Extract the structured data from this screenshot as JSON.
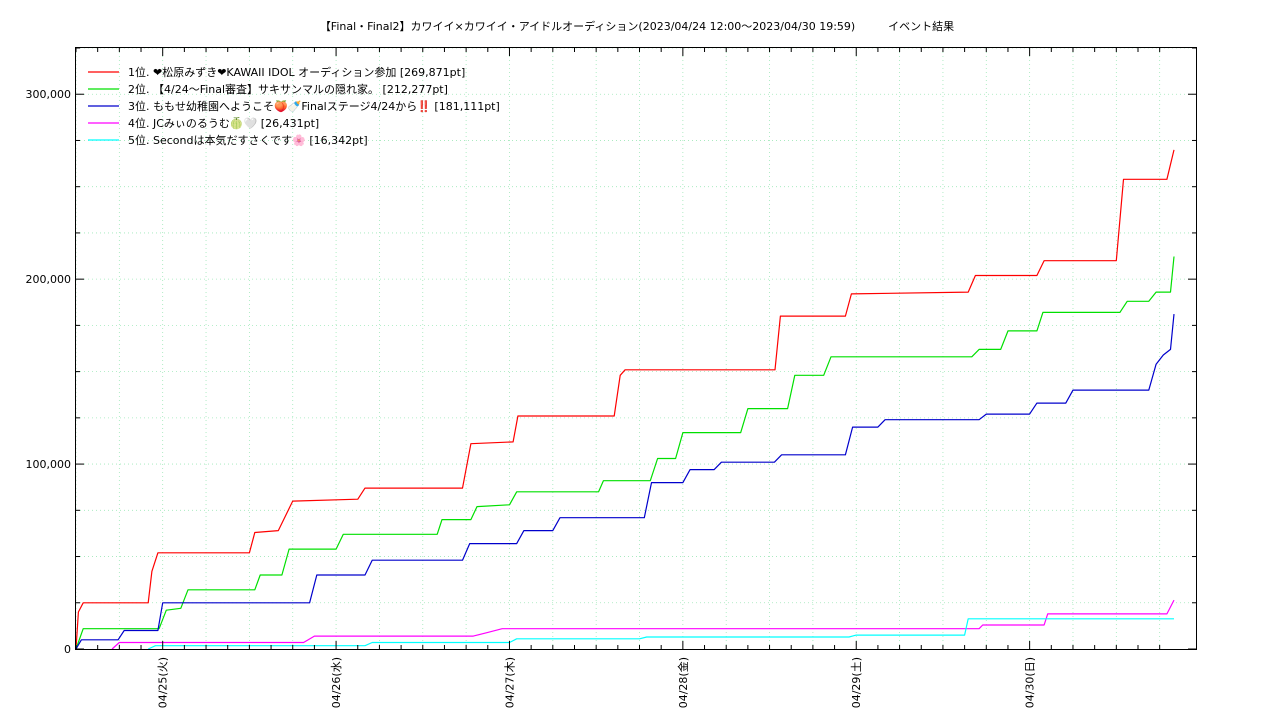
{
  "chart_data": {
    "type": "line",
    "title": "【Final・Final2】カワイイ×カワイイ・アイドルオーディション(2023/04/24 12:00〜2023/04/30 19:59)　　　イベント結果",
    "xlabel": "",
    "ylabel": "",
    "x_range": [
      "2023-04-24 12:00",
      "2023-04-30 19:59"
    ],
    "ylim": [
      0,
      325000
    ],
    "y_ticks": [
      0,
      100000,
      200000,
      300000
    ],
    "y_tick_labels": [
      "0",
      "100,000",
      "200,000",
      "300,000"
    ],
    "x_ticks": [
      "2023-04-25",
      "2023-04-26",
      "2023-04-27",
      "2023-04-28",
      "2023-04-29",
      "2023-04-30"
    ],
    "x_tick_labels": [
      "04/25(火)",
      "04/26(水)",
      "04/27(木)",
      "04/28(金)",
      "04/29(土)",
      "04/30(日)"
    ],
    "grid": true,
    "legend_position": "top-left",
    "series": [
      {
        "name": "1位. ❤松原みずき❤KAWAII IDOL オーディション参加 [269,871pt]",
        "color": "#ff0000",
        "points": [
          [
            "2023-04-24 12:00",
            0
          ],
          [
            "2023-04-24 12:20",
            20000
          ],
          [
            "2023-04-24 13:00",
            25000
          ],
          [
            "2023-04-24 22:00",
            25000
          ],
          [
            "2023-04-24 22:30",
            42000
          ],
          [
            "2023-04-24 23:20",
            52000
          ],
          [
            "2023-04-25 12:00",
            52000
          ],
          [
            "2023-04-25 12:45",
            63000
          ],
          [
            "2023-04-25 16:00",
            64000
          ],
          [
            "2023-04-25 18:00",
            80000
          ],
          [
            "2023-04-26 03:00",
            81000
          ],
          [
            "2023-04-26 04:00",
            87000
          ],
          [
            "2023-04-26 17:30",
            87000
          ],
          [
            "2023-04-26 18:40",
            111000
          ],
          [
            "2023-04-27 00:30",
            112000
          ],
          [
            "2023-04-27 01:10",
            126000
          ],
          [
            "2023-04-27 14:30",
            126000
          ],
          [
            "2023-04-27 15:20",
            148000
          ],
          [
            "2023-04-27 16:00",
            151000
          ],
          [
            "2023-04-28 12:45",
            151000
          ],
          [
            "2023-04-28 13:30",
            180000
          ],
          [
            "2023-04-28 22:30",
            180000
          ],
          [
            "2023-04-28 23:20",
            192000
          ],
          [
            "2023-04-29 15:30",
            193000
          ],
          [
            "2023-04-29 16:30",
            202000
          ],
          [
            "2023-04-30 01:00",
            202000
          ],
          [
            "2023-04-30 02:00",
            210000
          ],
          [
            "2023-04-30 12:00",
            210000
          ],
          [
            "2023-04-30 13:00",
            254000
          ],
          [
            "2023-04-30 19:00",
            254000
          ],
          [
            "2023-04-30 19:59",
            269871
          ]
        ]
      },
      {
        "name": "2位. 【4/24〜Final審査】サキサンマルの隠れ家。 [212,277pt]",
        "color": "#00e000",
        "points": [
          [
            "2023-04-24 12:00",
            0
          ],
          [
            "2023-04-24 13:00",
            11000
          ],
          [
            "2023-04-24 23:30",
            11000
          ],
          [
            "2023-04-25 00:30",
            21000
          ],
          [
            "2023-04-25 02:30",
            22000
          ],
          [
            "2023-04-25 03:30",
            32000
          ],
          [
            "2023-04-25 12:45",
            32000
          ],
          [
            "2023-04-25 13:30",
            40000
          ],
          [
            "2023-04-25 16:30",
            40000
          ],
          [
            "2023-04-25 17:30",
            54000
          ],
          [
            "2023-04-26 00:00",
            54000
          ],
          [
            "2023-04-26 01:00",
            62000
          ],
          [
            "2023-04-26 14:00",
            62000
          ],
          [
            "2023-04-26 14:40",
            70000
          ],
          [
            "2023-04-26 18:40",
            70000
          ],
          [
            "2023-04-26 19:30",
            77000
          ],
          [
            "2023-04-27 00:00",
            78000
          ],
          [
            "2023-04-27 01:00",
            85000
          ],
          [
            "2023-04-27 12:20",
            85000
          ],
          [
            "2023-04-27 13:00",
            91000
          ],
          [
            "2023-04-27 19:30",
            91000
          ],
          [
            "2023-04-27 20:30",
            103000
          ],
          [
            "2023-04-27 23:00",
            103000
          ],
          [
            "2023-04-28 00:00",
            117000
          ],
          [
            "2023-04-28 08:00",
            117000
          ],
          [
            "2023-04-28 09:00",
            130000
          ],
          [
            "2023-04-28 14:30",
            130000
          ],
          [
            "2023-04-28 15:30",
            148000
          ],
          [
            "2023-04-28 19:30",
            148000
          ],
          [
            "2023-04-28 20:30",
            158000
          ],
          [
            "2023-04-29 16:00",
            158000
          ],
          [
            "2023-04-29 17:00",
            162000
          ],
          [
            "2023-04-29 20:00",
            162000
          ],
          [
            "2023-04-29 21:00",
            172000
          ],
          [
            "2023-04-30 01:00",
            172000
          ],
          [
            "2023-04-30 01:50",
            182000
          ],
          [
            "2023-04-30 12:30",
            182000
          ],
          [
            "2023-04-30 13:30",
            188000
          ],
          [
            "2023-04-30 16:30",
            188000
          ],
          [
            "2023-04-30 17:30",
            193000
          ],
          [
            "2023-04-30 19:30",
            193000
          ],
          [
            "2023-04-30 19:59",
            212277
          ]
        ]
      },
      {
        "name": "3位. ももせ幼稚園へようこそ🍑🍼Finalステージ4/24から‼️ [181,111pt]",
        "color": "#0000cc",
        "points": [
          [
            "2023-04-24 12:00",
            0
          ],
          [
            "2023-04-24 12:45",
            5000
          ],
          [
            "2023-04-24 17:50",
            5000
          ],
          [
            "2023-04-24 18:40",
            10000
          ],
          [
            "2023-04-24 23:20",
            10000
          ],
          [
            "2023-04-25 00:00",
            25000
          ],
          [
            "2023-04-25 20:20",
            25000
          ],
          [
            "2023-04-25 21:20",
            40000
          ],
          [
            "2023-04-26 04:00",
            40000
          ],
          [
            "2023-04-26 05:00",
            48000
          ],
          [
            "2023-04-26 17:30",
            48000
          ],
          [
            "2023-04-26 18:30",
            57000
          ],
          [
            "2023-04-27 01:00",
            57000
          ],
          [
            "2023-04-27 02:00",
            64000
          ],
          [
            "2023-04-27 06:00",
            64000
          ],
          [
            "2023-04-27 07:00",
            71000
          ],
          [
            "2023-04-27 18:40",
            71000
          ],
          [
            "2023-04-27 19:40",
            90000
          ],
          [
            "2023-04-28 00:00",
            90000
          ],
          [
            "2023-04-28 01:00",
            97000
          ],
          [
            "2023-04-28 04:20",
            97000
          ],
          [
            "2023-04-28 05:20",
            101000
          ],
          [
            "2023-04-28 12:40",
            101000
          ],
          [
            "2023-04-28 13:40",
            105000
          ],
          [
            "2023-04-28 22:30",
            105000
          ],
          [
            "2023-04-28 23:30",
            120000
          ],
          [
            "2023-04-29 03:00",
            120000
          ],
          [
            "2023-04-29 04:00",
            124000
          ],
          [
            "2023-04-29 17:00",
            124000
          ],
          [
            "2023-04-29 18:00",
            127000
          ],
          [
            "2023-04-30 00:00",
            127000
          ],
          [
            "2023-04-30 01:00",
            133000
          ],
          [
            "2023-04-30 05:00",
            133000
          ],
          [
            "2023-04-30 06:00",
            140000
          ],
          [
            "2023-04-30 16:30",
            140000
          ],
          [
            "2023-04-30 17:30",
            154000
          ],
          [
            "2023-04-30 18:30",
            159000
          ],
          [
            "2023-04-30 19:30",
            162000
          ],
          [
            "2023-04-30 19:59",
            181111
          ]
        ]
      },
      {
        "name": "4位. JCみぃのるうむ🍈🤍 [26,431pt]",
        "color": "#ff00ff",
        "points": [
          [
            "2023-04-24 17:00",
            0
          ],
          [
            "2023-04-24 18:00",
            3500
          ],
          [
            "2023-04-25 19:30",
            3500
          ],
          [
            "2023-04-25 21:00",
            7000
          ],
          [
            "2023-04-26 19:00",
            7000
          ],
          [
            "2023-04-26 21:00",
            9000
          ],
          [
            "2023-04-26 23:00",
            11000
          ],
          [
            "2023-04-29 17:00",
            11000
          ],
          [
            "2023-04-29 17:30",
            13000
          ],
          [
            "2023-04-30 02:00",
            13000
          ],
          [
            "2023-04-30 02:30",
            19000
          ],
          [
            "2023-04-30 19:00",
            19000
          ],
          [
            "2023-04-30 19:59",
            26431
          ]
        ]
      },
      {
        "name": "5位. Secondは本気だすさくです🌸 [16,342pt]",
        "color": "#00ffff",
        "points": [
          [
            "2023-04-24 22:00",
            0
          ],
          [
            "2023-04-24 23:00",
            1800
          ],
          [
            "2023-04-26 04:00",
            1800
          ],
          [
            "2023-04-26 05:00",
            3500
          ],
          [
            "2023-04-27 00:00",
            3500
          ],
          [
            "2023-04-27 01:00",
            5500
          ],
          [
            "2023-04-27 18:00",
            5500
          ],
          [
            "2023-04-27 19:00",
            6500
          ],
          [
            "2023-04-28 23:00",
            6500
          ],
          [
            "2023-04-29 00:00",
            7500
          ],
          [
            "2023-04-29 15:00",
            7500
          ],
          [
            "2023-04-29 15:30",
            16342
          ],
          [
            "2023-04-30 19:59",
            16342
          ]
        ]
      }
    ]
  }
}
